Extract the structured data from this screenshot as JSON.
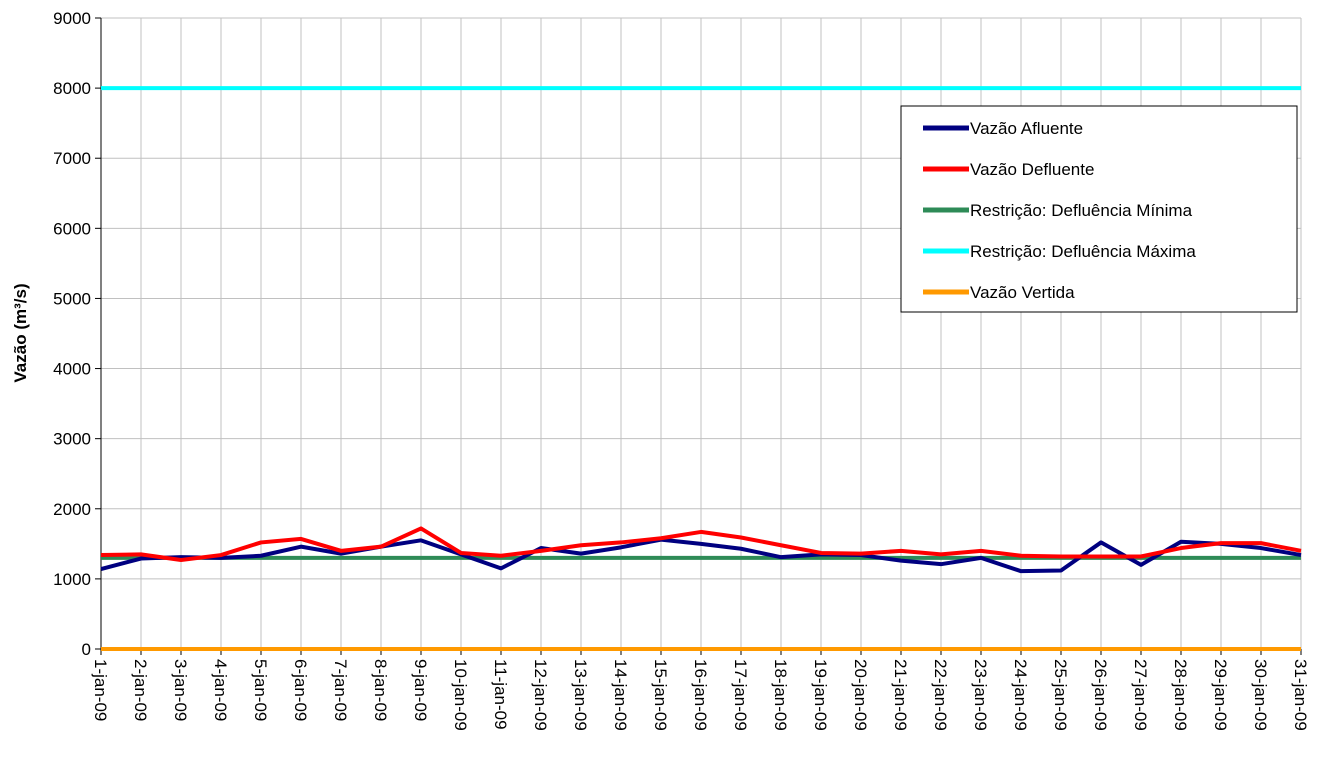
{
  "chart_data": {
    "type": "line",
    "title": "",
    "xlabel": "",
    "ylabel": "Vazão (m³/s)",
    "ylim": [
      0,
      9000
    ],
    "yticks": [
      0,
      1000,
      2000,
      3000,
      4000,
      5000,
      6000,
      7000,
      8000,
      9000
    ],
    "grid": true,
    "legend_position": "top-right",
    "categories": [
      "1-jan-09",
      "2-jan-09",
      "3-jan-09",
      "4-jan-09",
      "5-jan-09",
      "6-jan-09",
      "7-jan-09",
      "8-jan-09",
      "9-jan-09",
      "10-jan-09",
      "11-jan-09",
      "12-jan-09",
      "13-jan-09",
      "14-jan-09",
      "15-jan-09",
      "16-jan-09",
      "17-jan-09",
      "18-jan-09",
      "19-jan-09",
      "20-jan-09",
      "21-jan-09",
      "22-jan-09",
      "23-jan-09",
      "24-jan-09",
      "25-jan-09",
      "26-jan-09",
      "27-jan-09",
      "28-jan-09",
      "29-jan-09",
      "30-jan-09",
      "31-jan-09"
    ],
    "series": [
      {
        "name": "Vazão Afluente",
        "color": "#000080",
        "values": [
          1140,
          1290,
          1310,
          1300,
          1330,
          1460,
          1360,
          1460,
          1550,
          1350,
          1150,
          1440,
          1360,
          1450,
          1560,
          1500,
          1430,
          1310,
          1350,
          1340,
          1260,
          1210,
          1300,
          1110,
          1120,
          1520,
          1200,
          1530,
          1500,
          1440,
          1340
        ]
      },
      {
        "name": "Vazão Defluente",
        "color": "#ff0000",
        "values": [
          1340,
          1350,
          1270,
          1340,
          1520,
          1570,
          1400,
          1460,
          1720,
          1370,
          1330,
          1400,
          1480,
          1520,
          1580,
          1670,
          1590,
          1480,
          1370,
          1360,
          1400,
          1350,
          1400,
          1330,
          1320,
          1320,
          1320,
          1440,
          1510,
          1510,
          1400
        ]
      },
      {
        "name": "Restrição: Defluência Mínima",
        "color": "#2e8b57",
        "values": [
          1300,
          1300,
          1300,
          1300,
          1300,
          1300,
          1300,
          1300,
          1300,
          1300,
          1300,
          1300,
          1300,
          1300,
          1300,
          1300,
          1300,
          1300,
          1300,
          1300,
          1300,
          1300,
          1300,
          1300,
          1300,
          1300,
          1300,
          1300,
          1300,
          1300,
          1300
        ]
      },
      {
        "name": "Restrição: Defluência Máxima",
        "color": "#00ffff",
        "values": [
          8000,
          8000,
          8000,
          8000,
          8000,
          8000,
          8000,
          8000,
          8000,
          8000,
          8000,
          8000,
          8000,
          8000,
          8000,
          8000,
          8000,
          8000,
          8000,
          8000,
          8000,
          8000,
          8000,
          8000,
          8000,
          8000,
          8000,
          8000,
          8000,
          8000,
          8000
        ]
      },
      {
        "name": "Vazão Vertida",
        "color": "#ff9900",
        "values": [
          0,
          0,
          0,
          0,
          0,
          0,
          0,
          0,
          0,
          0,
          0,
          0,
          0,
          0,
          0,
          0,
          0,
          0,
          0,
          0,
          0,
          0,
          0,
          0,
          0,
          0,
          0,
          0,
          0,
          0,
          0
        ]
      }
    ]
  }
}
